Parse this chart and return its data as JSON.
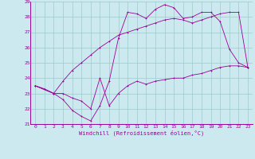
{
  "xlabel": "Windchill (Refroidissement éolien,°C)",
  "xlim": [
    -0.5,
    23.5
  ],
  "ylim": [
    21,
    29
  ],
  "yticks": [
    21,
    22,
    23,
    24,
    25,
    26,
    27,
    28,
    29
  ],
  "xticks": [
    0,
    1,
    2,
    3,
    4,
    5,
    6,
    7,
    8,
    9,
    10,
    11,
    12,
    13,
    14,
    15,
    16,
    17,
    18,
    19,
    20,
    21,
    22,
    23
  ],
  "bg_color": "#cce9f0",
  "line_color": "#990099",
  "grid_color": "#99cccc",
  "line1_x": [
    0,
    1,
    2,
    3,
    4,
    5,
    6,
    7,
    8,
    9,
    10,
    11,
    12,
    13,
    14,
    15,
    16,
    17,
    18,
    19,
    20,
    21,
    22,
    23
  ],
  "line1_y": [
    23.5,
    23.3,
    23.0,
    22.6,
    21.9,
    21.5,
    21.2,
    22.2,
    23.8,
    26.6,
    28.3,
    28.2,
    27.9,
    28.5,
    28.8,
    28.6,
    27.9,
    28.0,
    28.3,
    28.3,
    27.7,
    25.9,
    25.0,
    24.7
  ],
  "line2_x": [
    0,
    2,
    3,
    4,
    5,
    6,
    7,
    8,
    9,
    10,
    11,
    12,
    13,
    14,
    15,
    16,
    17,
    18,
    19,
    20,
    21,
    22,
    23
  ],
  "line2_y": [
    23.5,
    23.0,
    23.0,
    22.7,
    22.5,
    22.0,
    24.0,
    22.2,
    23.0,
    23.5,
    23.8,
    23.6,
    23.8,
    23.9,
    24.0,
    24.0,
    24.2,
    24.3,
    24.5,
    24.7,
    24.8,
    24.8,
    24.7
  ],
  "line3_x": [
    0,
    2,
    3,
    4,
    5,
    6,
    7,
    8,
    9,
    10,
    11,
    12,
    13,
    14,
    15,
    16,
    17,
    18,
    19,
    20,
    21,
    22,
    23
  ],
  "line3_y": [
    23.5,
    23.0,
    23.8,
    24.5,
    25.0,
    25.5,
    26.0,
    26.4,
    26.8,
    27.0,
    27.2,
    27.4,
    27.6,
    27.8,
    27.9,
    27.8,
    27.6,
    27.8,
    28.0,
    28.2,
    28.3,
    28.3,
    24.7
  ]
}
